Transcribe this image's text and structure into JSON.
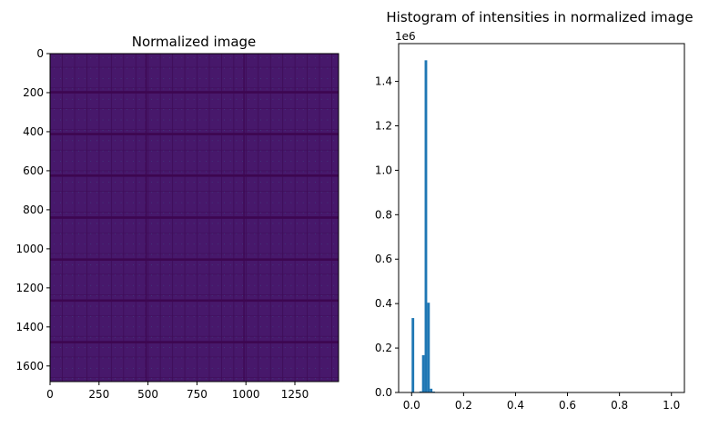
{
  "chart_data": [
    {
      "type": "heatmap",
      "title": "Normalized image",
      "colormap": "viridis",
      "xlim": [
        0,
        1473
      ],
      "ylim": [
        1680,
        0
      ],
      "xticks": [
        "0",
        "250",
        "500",
        "750",
        "1000",
        "1250"
      ],
      "yticks": [
        "0",
        "200",
        "400",
        "600",
        "800",
        "1000",
        "1200",
        "1400",
        "1600"
      ],
      "colors": {
        "background": "#47186b",
        "band": "#3d0650",
        "grid": "#3f0d58",
        "dot": "#3a5a8c"
      },
      "dark_horizontal_bands_at": [
        198,
        412,
        625,
        840,
        1055,
        1265,
        1478
      ],
      "dark_vertical_lines_at": [
        490,
        990
      ]
    },
    {
      "type": "bar",
      "title": "Histogram of intensities in normalized image",
      "xlim": [
        -0.05,
        1.05
      ],
      "ylim": [
        0,
        1.57
      ],
      "y_scale_label": "1e6",
      "xticks": [
        "0.0",
        "0.2",
        "0.4",
        "0.6",
        "0.8",
        "1.0"
      ],
      "yticks": [
        "0.0",
        "0.2",
        "0.4",
        "0.6",
        "0.8",
        "1.0",
        "1.2",
        "1.4"
      ],
      "bin_width": 0.01,
      "bins": [
        {
          "x": 0.0,
          "count": 0.335
        },
        {
          "x": 0.03,
          "count": 0.005
        },
        {
          "x": 0.04,
          "count": 0.168
        },
        {
          "x": 0.05,
          "count": 1.495
        },
        {
          "x": 0.06,
          "count": 0.404
        },
        {
          "x": 0.07,
          "count": 0.017
        },
        {
          "x": 0.08,
          "count": 0.004
        }
      ],
      "color": "#1f77b4"
    }
  ]
}
